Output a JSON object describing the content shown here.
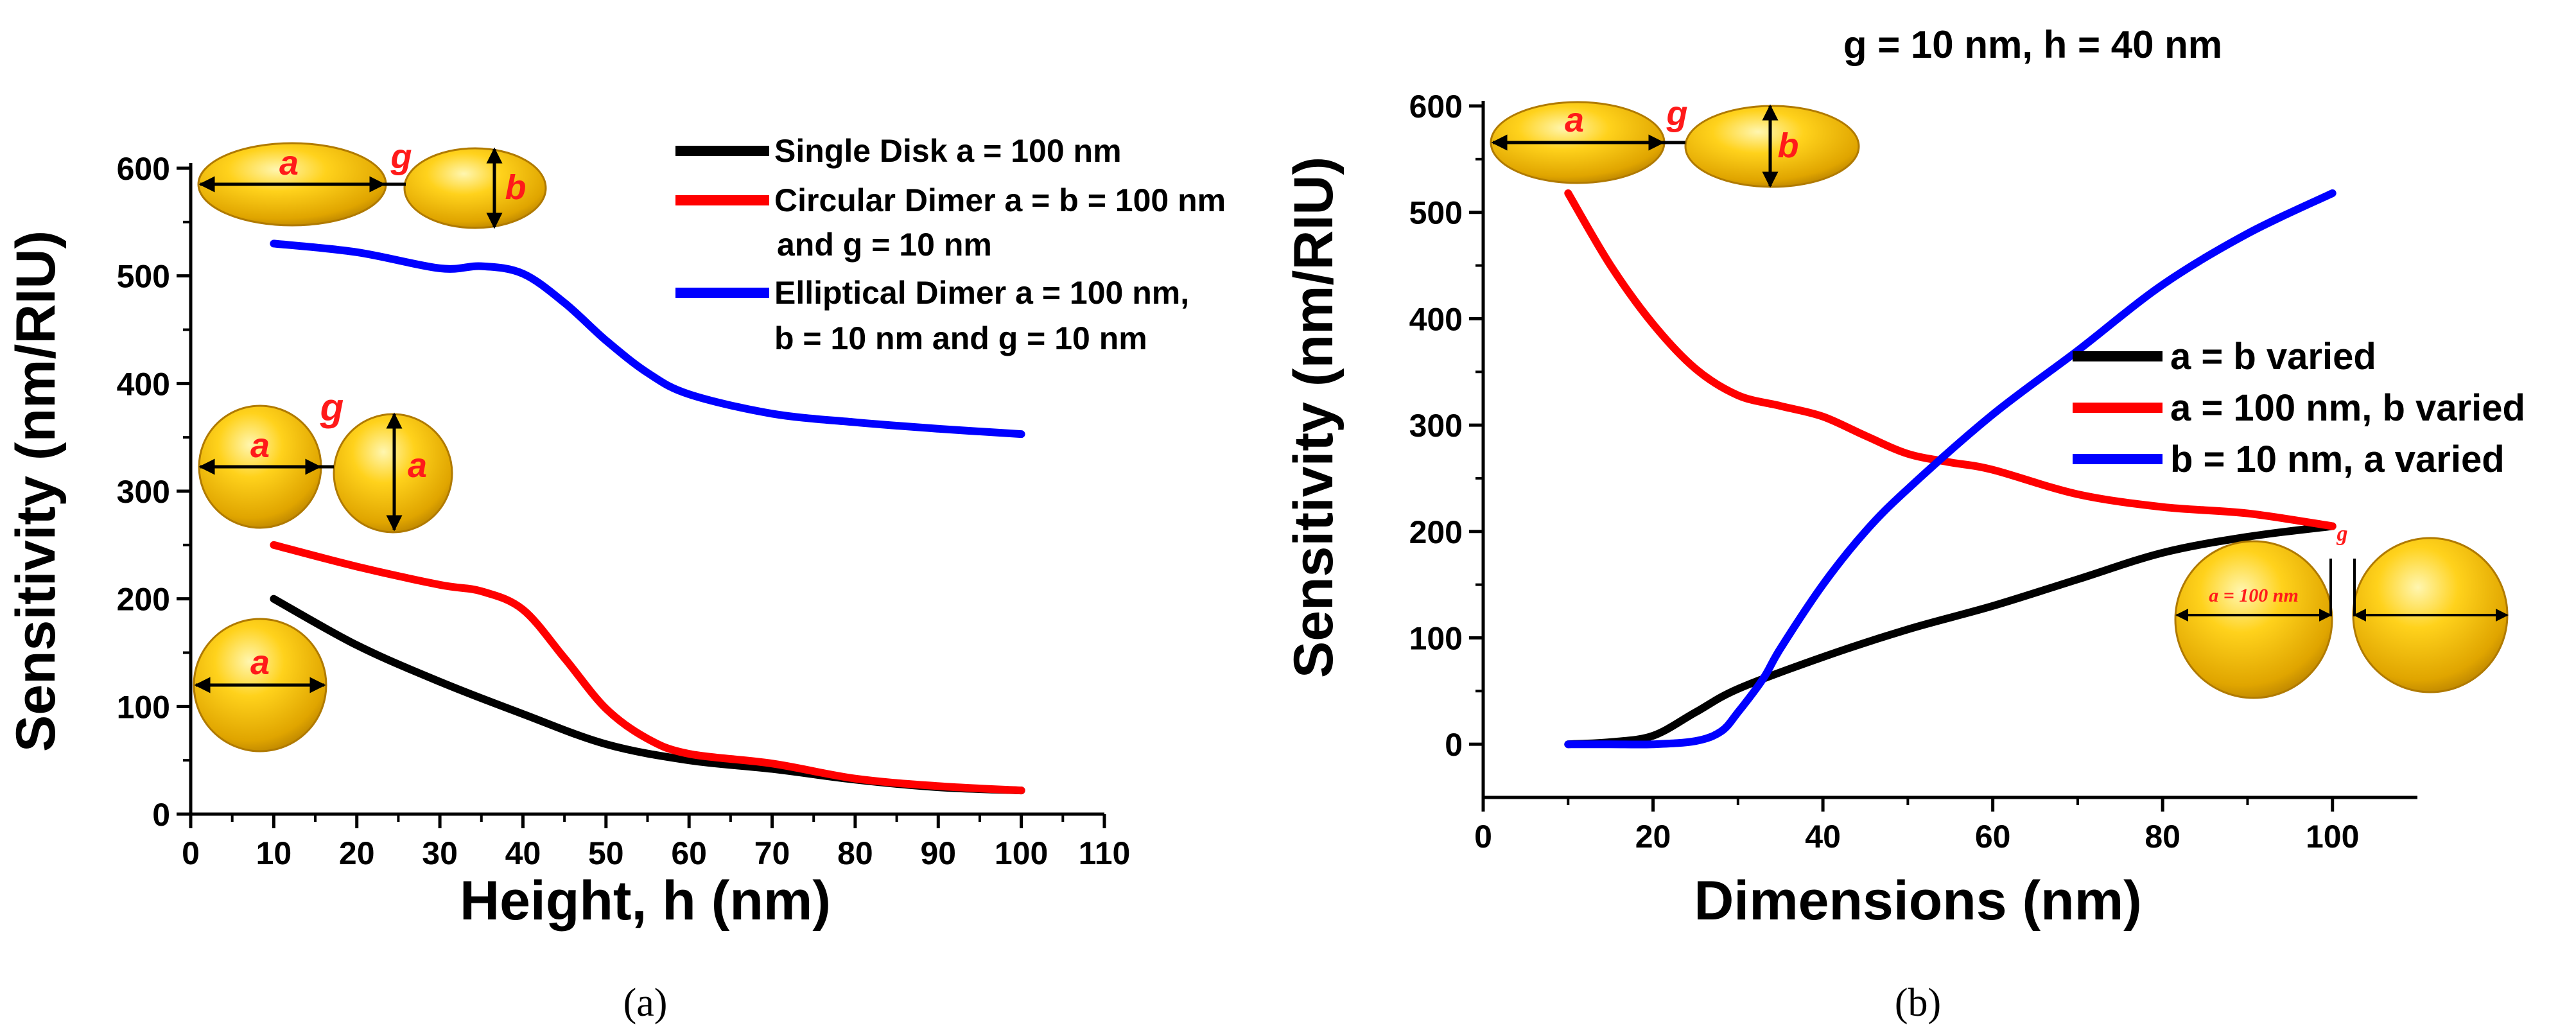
{
  "chart_data": [
    {
      "type": "line",
      "panel": "a",
      "caption": "(a)",
      "title": "",
      "xlabel": "Height, h (nm)",
      "ylabel": "Sensitivity (nm/RIU)",
      "xlim": [
        0,
        110
      ],
      "ylim": [
        0,
        600
      ],
      "xticks": [
        "0",
        "10",
        "20",
        "30",
        "40",
        "50",
        "60",
        "70",
        "80",
        "90",
        "100",
        "110"
      ],
      "yticks": [
        "0",
        "100",
        "200",
        "300",
        "400",
        "500",
        "600"
      ],
      "grid": false,
      "legend": "top-right",
      "legend_lines": [
        {
          "series": 0,
          "text": "Single Disk a = 100 nm"
        },
        {
          "series": 1,
          "text": "Circular Dimer a = b = 100 nm"
        },
        {
          "series": -1,
          "text": "and g = 10 nm"
        },
        {
          "series": 2,
          "text": "Elliptical Dimer a = 100 nm,"
        },
        {
          "series": -1,
          "text": "b = 10 nm and g = 10 nm"
        }
      ],
      "series": [
        {
          "name": "Single Disk a = 100 nm",
          "color": "#000000",
          "x": [
            10,
            20,
            30,
            40,
            50,
            60,
            70,
            80,
            90,
            100
          ],
          "y": [
            200,
            157,
            123,
            93,
            65,
            50,
            42,
            32,
            25,
            22
          ]
        },
        {
          "name": "Circular Dimer a = b = 100 nm and g = 10 nm",
          "color": "#ff0000",
          "x": [
            10,
            20,
            30,
            35,
            40,
            45,
            50,
            55,
            60,
            70,
            80,
            90,
            100
          ],
          "y": [
            250,
            230,
            213,
            207,
            190,
            145,
            98,
            70,
            56,
            47,
            33,
            26,
            22
          ]
        },
        {
          "name": "Elliptical Dimer a = 100 nm, b = 10 nm and g = 10 nm",
          "color": "#0000ff",
          "x": [
            10,
            20,
            30,
            35,
            40,
            45,
            50,
            55,
            60,
            70,
            80,
            90,
            100
          ],
          "y": [
            530,
            522,
            507,
            509,
            502,
            475,
            440,
            410,
            390,
            372,
            364,
            358,
            353
          ]
        }
      ],
      "insets": [
        {
          "kind": "elliptical-dimer",
          "labels": {
            "left": "a",
            "gap": "g",
            "right": "b"
          }
        },
        {
          "kind": "circular-dimer",
          "labels": {
            "left": "a",
            "gap": "g",
            "right": "a"
          }
        },
        {
          "kind": "single-disk",
          "labels": {
            "left": "a"
          }
        }
      ]
    },
    {
      "type": "line",
      "panel": "b",
      "caption": "(b)",
      "title": "g = 10 nm, h = 40 nm",
      "xlabel": "Dimensions (nm)",
      "ylabel": "Sensitivity (nm/RIU)",
      "xlim": [
        0,
        110
      ],
      "ylim": [
        -50,
        600
      ],
      "xticks": [
        "0",
        "20",
        "40",
        "60",
        "80",
        "100"
      ],
      "yticks": [
        "0",
        "100",
        "200",
        "300",
        "400",
        "500",
        "600"
      ],
      "grid": false,
      "legend": "center-right",
      "legend_lines": [
        {
          "series": 0,
          "text": "a = b varied"
        },
        {
          "series": 1,
          "text": "a = 100 nm, b varied"
        },
        {
          "series": 2,
          "text": "b = 10 nm, a varied"
        }
      ],
      "series": [
        {
          "name": "a = b varied",
          "color": "#000000",
          "x": [
            10,
            15,
            20,
            25,
            30,
            40,
            50,
            60,
            70,
            80,
            90,
            100
          ],
          "y": [
            0,
            2,
            8,
            30,
            52,
            82,
            108,
            130,
            155,
            180,
            195,
            205
          ]
        },
        {
          "name": "a = 100 nm, b varied",
          "color": "#ff0000",
          "x": [
            10,
            15,
            20,
            25,
            30,
            35,
            40,
            45,
            50,
            55,
            60,
            70,
            80,
            90,
            100
          ],
          "y": [
            518,
            450,
            395,
            353,
            328,
            318,
            308,
            290,
            273,
            265,
            258,
            235,
            223,
            217,
            205
          ]
        },
        {
          "name": "b = 10 nm, a varied",
          "color": "#0000ff",
          "x": [
            10,
            15,
            20,
            25,
            28,
            30,
            33,
            35,
            40,
            45,
            50,
            60,
            70,
            80,
            90,
            100
          ],
          "y": [
            0,
            0,
            0,
            3,
            12,
            30,
            62,
            90,
            150,
            200,
            240,
            310,
            370,
            432,
            480,
            518
          ]
        }
      ],
      "insets": [
        {
          "kind": "elliptical-dimer",
          "labels": {
            "left": "a",
            "gap": "g",
            "right": "b"
          }
        },
        {
          "kind": "circular-dimer",
          "labels": {
            "left": "a = 100 nm",
            "gap": "g"
          }
        }
      ]
    }
  ]
}
